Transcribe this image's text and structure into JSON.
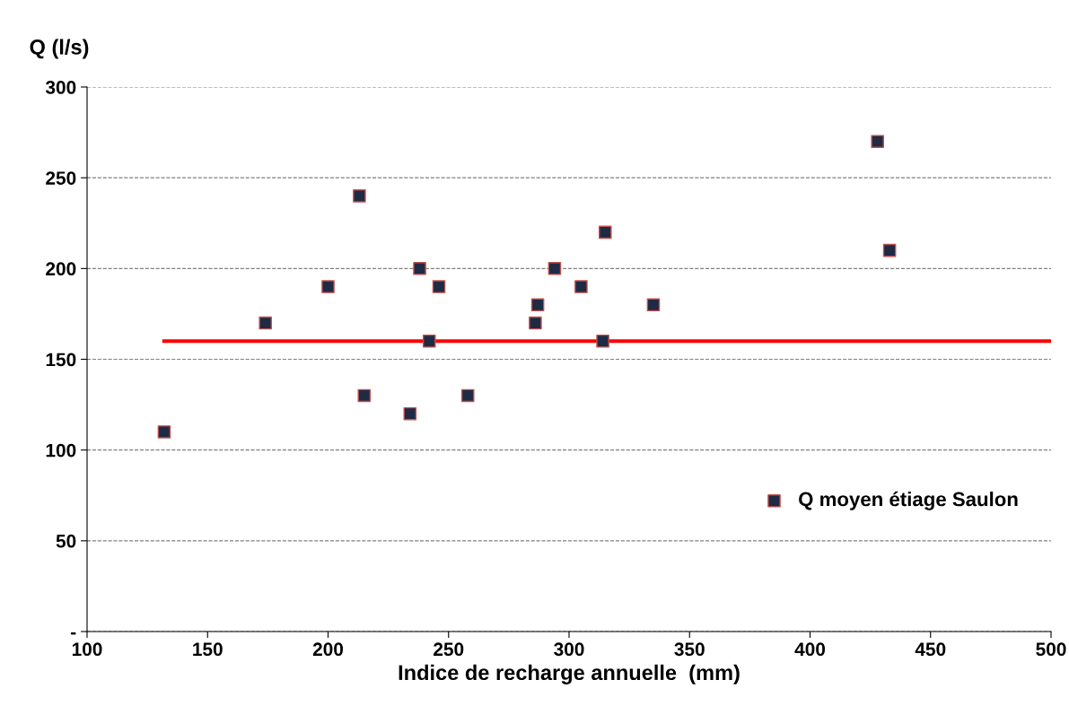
{
  "chart_data": {
    "type": "scatter",
    "xlabel": "Indice de recharge annuelle  (mm)",
    "ylabel": "Q (l/s)",
    "xlim": [
      100,
      500
    ],
    "xticks": [
      100,
      150,
      200,
      250,
      300,
      350,
      400,
      450,
      500
    ],
    "ylim": [
      0,
      300
    ],
    "yticks": [
      {
        "value": 0,
        "label": "-"
      },
      50,
      100,
      150,
      200,
      250,
      300
    ],
    "grid": "y",
    "legend": "right",
    "series": [
      {
        "name": "Q moyen étiage Saulon",
        "marker": "square",
        "color": "#1f2a44",
        "x": [
          132,
          174,
          200,
          213,
          215,
          234,
          238,
          242,
          246,
          258,
          286,
          287,
          294,
          305,
          314,
          315,
          335,
          428,
          433
        ],
        "values": [
          110,
          170,
          190,
          240,
          130,
          120,
          200,
          160,
          190,
          130,
          170,
          180,
          200,
          190,
          160,
          220,
          180,
          270,
          210
        ]
      },
      {
        "type": "line",
        "color": "#ff0000",
        "x": [
          132,
          500
        ],
        "values": [
          160,
          160
        ]
      }
    ]
  }
}
